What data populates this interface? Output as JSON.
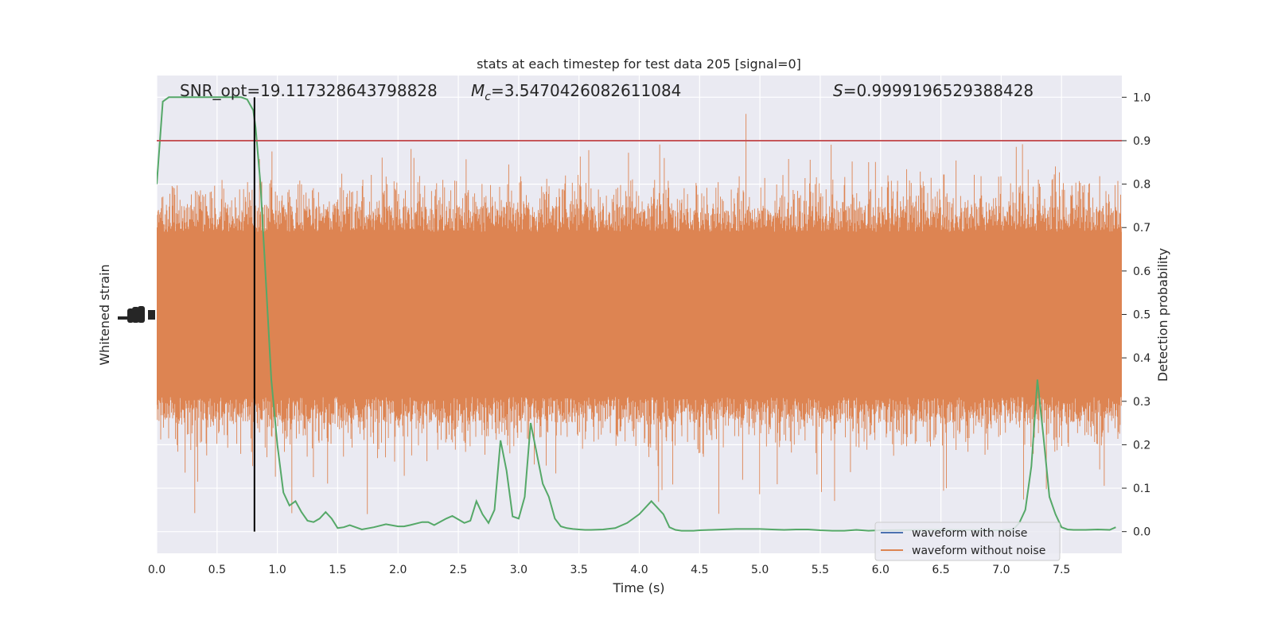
{
  "chart_data": {
    "type": "line",
    "title": "stats at each timestep for test data 205 [signal=0]",
    "xlabel": "Time (s)",
    "ylabel_left": "Whitened strain",
    "ylabel_right": "Detection probability",
    "xlim": [
      0,
      8
    ],
    "ylim_right": [
      -0.05,
      1.05
    ],
    "x_ticks": [
      "0.0",
      "0.5",
      "1.0",
      "1.5",
      "2.0",
      "2.5",
      "3.0",
      "3.5",
      "4.0",
      "4.5",
      "5.0",
      "5.5",
      "6.0",
      "6.5",
      "7.0",
      "7.5"
    ],
    "y_ticks_right": [
      "0.0",
      "0.1",
      "0.2",
      "0.3",
      "0.4",
      "0.5",
      "0.6",
      "0.7",
      "0.8",
      "0.9",
      "1.0"
    ],
    "grid": true,
    "annotations": {
      "snr_text": "SNR_opt=19.117328643798828",
      "mc_symbol": "M",
      "mc_sub": "c",
      "mc_value": "=3.5470426082611084",
      "s_symbol": "S",
      "s_value": "=0.9999196529388428"
    },
    "threshold": 0.9,
    "marker_time": 0.81,
    "legend": {
      "placement": "lower-right",
      "entries": [
        {
          "label": "waveform with noise",
          "color": "#4c72b0"
        },
        {
          "label": "waveform without noise",
          "color": "#dd8452"
        }
      ]
    },
    "colors": {
      "background": "#eaeaf2",
      "grid": "#ffffff",
      "strain": "#dd8452",
      "probability": "#55a868",
      "threshold": "#c44e52",
      "marker": "#000000"
    },
    "series": [
      {
        "name": "Detection probability",
        "x": [
          0.0,
          0.05,
          0.1,
          0.15,
          0.2,
          0.3,
          0.4,
          0.5,
          0.6,
          0.7,
          0.75,
          0.8,
          0.82,
          0.86,
          0.9,
          0.95,
          1.0,
          1.05,
          1.1,
          1.15,
          1.2,
          1.25,
          1.3,
          1.35,
          1.4,
          1.45,
          1.5,
          1.55,
          1.6,
          1.7,
          1.8,
          1.9,
          2.0,
          2.05,
          2.1,
          2.2,
          2.25,
          2.3,
          2.4,
          2.45,
          2.5,
          2.55,
          2.6,
          2.65,
          2.7,
          2.75,
          2.8,
          2.85,
          2.9,
          2.95,
          3.0,
          3.05,
          3.1,
          3.15,
          3.2,
          3.25,
          3.3,
          3.35,
          3.4,
          3.45,
          3.5,
          3.55,
          3.6,
          3.7,
          3.8,
          3.9,
          4.0,
          4.1,
          4.2,
          4.25,
          4.3,
          4.35,
          4.4,
          4.45,
          4.5,
          4.6,
          4.8,
          5.0,
          5.1,
          5.2,
          5.3,
          5.4,
          5.5,
          5.6,
          5.7,
          5.8,
          5.9,
          6.0,
          6.5,
          7.0,
          7.1,
          7.15,
          7.2,
          7.25,
          7.3,
          7.35,
          7.4,
          7.45,
          7.5,
          7.55,
          7.6,
          7.7,
          7.8,
          7.9,
          7.95
        ],
        "y": [
          0.8,
          0.99,
          1.0,
          1.0,
          1.0,
          1.0,
          1.0,
          1.0,
          1.0,
          1.0,
          0.995,
          0.97,
          0.93,
          0.8,
          0.6,
          0.35,
          0.2,
          0.09,
          0.06,
          0.07,
          0.045,
          0.025,
          0.022,
          0.03,
          0.045,
          0.03,
          0.008,
          0.01,
          0.015,
          0.005,
          0.01,
          0.017,
          0.012,
          0.012,
          0.015,
          0.022,
          0.022,
          0.015,
          0.03,
          0.036,
          0.028,
          0.02,
          0.025,
          0.07,
          0.04,
          0.02,
          0.05,
          0.21,
          0.14,
          0.035,
          0.03,
          0.08,
          0.25,
          0.18,
          0.11,
          0.08,
          0.03,
          0.012,
          0.008,
          0.006,
          0.005,
          0.004,
          0.004,
          0.005,
          0.008,
          0.02,
          0.04,
          0.07,
          0.04,
          0.01,
          0.004,
          0.002,
          0.002,
          0.002,
          0.003,
          0.004,
          0.006,
          0.006,
          0.005,
          0.004,
          0.005,
          0.005,
          0.003,
          0.002,
          0.002,
          0.004,
          0.002,
          0.003,
          0.004,
          0.003,
          0.005,
          0.02,
          0.05,
          0.15,
          0.35,
          0.22,
          0.08,
          0.04,
          0.01,
          0.005,
          0.004,
          0.004,
          0.005,
          0.004,
          0.01
        ]
      },
      {
        "name": "waveform without noise",
        "description_values": "noise-like whitened strain, central band 0.31–0.69, upper spikes to ~0.97, lower spikes to ~0.0 (on probability axis scale)"
      }
    ]
  }
}
